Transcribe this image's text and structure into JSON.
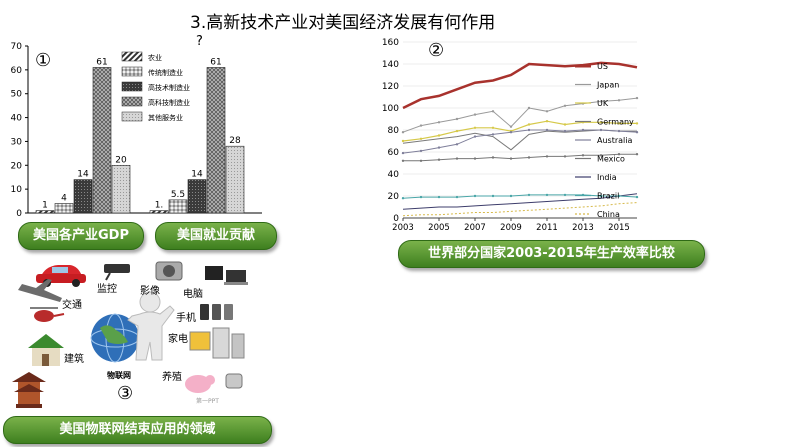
{
  "slide": {
    "title": "3.高新技术产业对美国经济发展有何作用",
    "title_question_mark": "?",
    "marker1": "①",
    "marker2": "②",
    "marker3": "③"
  },
  "captions": {
    "gdp": "美国各产业GDP",
    "employment": "美国就业贡献",
    "productivity": "世界部分国家2003-2015年生产效率比较",
    "iot": "美国物联网结束应用的领域"
  },
  "iot": {
    "center_label": "物联网",
    "domains": [
      "交通",
      "监控",
      "影像",
      "电脑",
      "手机",
      "家电",
      "建筑",
      "养殖"
    ],
    "watermark": "第一PPT"
  },
  "chart_data": [
    {
      "type": "bar",
      "title": "",
      "groups": [
        "美国各产业GDP",
        "美国就业贡献"
      ],
      "series": [
        {
          "name": "农业",
          "values": [
            1,
            1
          ]
        },
        {
          "name": "传统制造业",
          "values": [
            4,
            5.5
          ]
        },
        {
          "name": "高技术制造业",
          "values": [
            14,
            14
          ]
        },
        {
          "name": "高科技制造业",
          "values": [
            61,
            61
          ]
        },
        {
          "name": "其他服务业",
          "values": [
            20,
            28
          ]
        }
      ],
      "data_labels": [
        [
          "1",
          "4",
          "14",
          "61",
          "20"
        ],
        [
          "1.",
          "5.5",
          "14",
          "61",
          "28"
        ]
      ],
      "yticks": [
        0,
        10,
        20,
        30,
        40,
        50,
        60,
        70
      ],
      "ylim": [
        0,
        70
      ],
      "xlabel": "",
      "ylabel": "",
      "legend_position": "top-right",
      "colors": {
        "fills": [
          "#555555",
          "#cfcfcf",
          "#4a4a4a",
          "#9a9a9a",
          "#cccccc"
        ]
      }
    },
    {
      "type": "line",
      "title": "",
      "x": [
        2003,
        2004,
        2005,
        2006,
        2007,
        2008,
        2009,
        2010,
        2011,
        2012,
        2013,
        2014,
        2015,
        2016
      ],
      "xticks": [
        "2003",
        "2005",
        "2007",
        "2009",
        "2011",
        "2013",
        "2015"
      ],
      "yticks": [
        0,
        20,
        40,
        60,
        80,
        100,
        120,
        140,
        160
      ],
      "ylim": [
        0,
        160
      ],
      "xlabel": "",
      "ylabel": "",
      "legend_position": "right",
      "series": [
        {
          "name": "US",
          "color": "#a8322d",
          "width": 2.5,
          "dash": "",
          "values": [
            100,
            108,
            111,
            117,
            123,
            125,
            130,
            140,
            139,
            138,
            139,
            141,
            140,
            137
          ]
        },
        {
          "name": "Japan",
          "color": "#9a9a9a",
          "width": 1,
          "dash": "",
          "values": [
            78,
            84,
            87,
            90,
            94,
            97,
            83,
            100,
            97,
            102,
            104,
            106,
            107,
            109
          ]
        },
        {
          "name": "UK",
          "color": "#d6c94a",
          "width": 1.2,
          "dash": "",
          "values": [
            70,
            72,
            75,
            79,
            82,
            82,
            79,
            85,
            88,
            85,
            87,
            87,
            86,
            86
          ]
        },
        {
          "name": "Germany",
          "color": "#7a7a7a",
          "width": 1,
          "dash": "",
          "values": [
            68,
            70,
            72,
            74,
            77,
            74,
            62,
            76,
            79,
            78,
            79,
            80,
            79,
            79
          ]
        },
        {
          "name": "Australia",
          "color": "#7f7f9a",
          "width": 1,
          "dash": "",
          "values": [
            59,
            61,
            64,
            67,
            74,
            76,
            78,
            80,
            80,
            79,
            80,
            80,
            79,
            78
          ]
        },
        {
          "name": "Mexico",
          "color": "#777777",
          "width": 1,
          "dash": "",
          "values": [
            52,
            52,
            53,
            54,
            54,
            55,
            54,
            55,
            56,
            56,
            57,
            57,
            58,
            58
          ]
        },
        {
          "name": "India",
          "color": "#3d3d6b",
          "width": 1,
          "dash": "",
          "values": [
            8,
            9,
            10,
            10,
            11,
            12,
            13,
            14,
            15,
            16,
            17,
            18,
            20,
            22
          ]
        },
        {
          "name": "Brazil",
          "color": "#4aa6a8",
          "width": 1,
          "dash": "",
          "values": [
            18,
            19,
            19,
            19,
            20,
            20,
            20,
            21,
            21,
            21,
            21,
            20,
            20,
            19
          ]
        },
        {
          "name": "China",
          "color": "#d6b94a",
          "width": 1,
          "dash": "2,2",
          "values": [
            2,
            3,
            3,
            4,
            5,
            5,
            6,
            7,
            8,
            9,
            10,
            11,
            13,
            14
          ]
        }
      ]
    }
  ]
}
